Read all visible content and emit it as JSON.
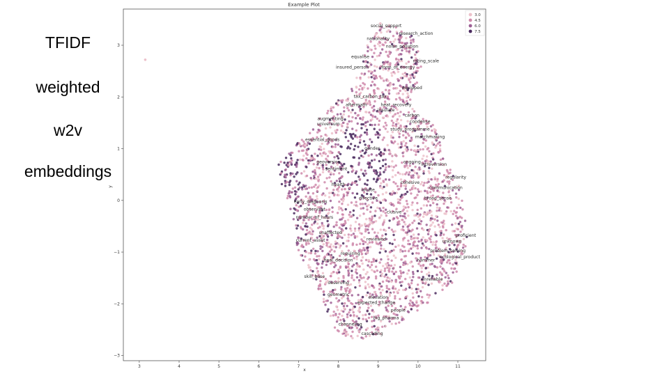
{
  "slide": {
    "side_lines": [
      "TFIDF",
      "weighted",
      "w2v",
      "embeddings"
    ]
  },
  "chart_data": {
    "type": "scatter",
    "title": "Example Plot",
    "xlabel": "x",
    "ylabel": "y",
    "xlim": [
      2.6,
      11.7
    ],
    "ylim": [
      -3.1,
      3.7
    ],
    "xticks": [
      3,
      4,
      5,
      6,
      7,
      8,
      9,
      10,
      11
    ],
    "yticks": [
      -3,
      -2,
      -1,
      0,
      1,
      2,
      3
    ],
    "grid": false,
    "legend": {
      "placement": "top-right",
      "entries": [
        "3.0",
        "4.5",
        "6.0",
        "7.5"
      ]
    },
    "hue_colors": {
      "3.0": "#ecc1ca",
      "4.5": "#cf8aab",
      "6.0": "#9c5f94",
      "7.5": "#4a2a5e"
    },
    "point_color": "#c77aa6",
    "outlier_points": [
      {
        "x": 3.15,
        "y": 2.72
      }
    ],
    "cloud_outline": [
      [
        9.05,
        3.45
      ],
      [
        9.6,
        3.38
      ],
      [
        10.05,
        3.05
      ],
      [
        10.1,
        2.6
      ],
      [
        9.95,
        2.2
      ],
      [
        9.8,
        1.9
      ],
      [
        10.0,
        1.65
      ],
      [
        10.4,
        1.45
      ],
      [
        10.6,
        1.05
      ],
      [
        10.65,
        0.75
      ],
      [
        10.95,
        0.55
      ],
      [
        11.05,
        0.25
      ],
      [
        11.15,
        -0.2
      ],
      [
        11.25,
        -0.7
      ],
      [
        11.1,
        -1.2
      ],
      [
        10.85,
        -1.6
      ],
      [
        10.4,
        -1.9
      ],
      [
        9.9,
        -2.2
      ],
      [
        9.4,
        -2.45
      ],
      [
        8.9,
        -2.65
      ],
      [
        8.4,
        -2.75
      ],
      [
        8.0,
        -2.6
      ],
      [
        7.75,
        -2.2
      ],
      [
        7.5,
        -1.75
      ],
      [
        7.25,
        -1.35
      ],
      [
        7.0,
        -1.05
      ],
      [
        6.9,
        -0.55
      ],
      [
        6.75,
        -0.05
      ],
      [
        6.55,
        0.35
      ],
      [
        6.5,
        0.7
      ],
      [
        6.8,
        0.95
      ],
      [
        7.2,
        1.3
      ],
      [
        7.6,
        1.65
      ],
      [
        8.0,
        1.95
      ],
      [
        8.35,
        2.2
      ],
      [
        8.55,
        2.55
      ],
      [
        8.75,
        3.05
      ]
    ],
    "word_labels": [
      {
        "text": "social_support",
        "x": 9.2,
        "y": 3.35
      },
      {
        "text": "research_action",
        "x": 9.95,
        "y": 3.2
      },
      {
        "text": "nationality",
        "x": 9.0,
        "y": 3.1
      },
      {
        "text": "noise_pollution",
        "x": 9.6,
        "y": 2.95
      },
      {
        "text": "equalise",
        "x": 8.55,
        "y": 2.75
      },
      {
        "text": "rating_scale",
        "x": 10.2,
        "y": 2.67
      },
      {
        "text": "form_of_energy",
        "x": 9.5,
        "y": 2.55
      },
      {
        "text": "insured_person",
        "x": 8.35,
        "y": 2.55
      },
      {
        "text": "equipped",
        "x": 9.85,
        "y": 2.15
      },
      {
        "text": "tax_carbon_tax",
        "x": 8.8,
        "y": 1.98
      },
      {
        "text": "aftermath",
        "x": 8.45,
        "y": 1.82
      },
      {
        "text": "heat_recovery",
        "x": 9.45,
        "y": 1.82
      },
      {
        "text": "insulate",
        "x": 9.2,
        "y": 1.72
      },
      {
        "text": "carbon",
        "x": 9.85,
        "y": 1.62
      },
      {
        "text": "augmenting",
        "x": 7.8,
        "y": 1.55
      },
      {
        "text": "condense",
        "x": 10.05,
        "y": 1.5
      },
      {
        "text": "universum",
        "x": 7.75,
        "y": 1.45
      },
      {
        "text": "study_programme",
        "x": 9.8,
        "y": 1.35
      },
      {
        "text": "matchmaking",
        "x": 10.3,
        "y": 1.2
      },
      {
        "text": "essential_goods",
        "x": 7.6,
        "y": 1.15
      },
      {
        "text": "gender",
        "x": 8.85,
        "y": 0.98
      },
      {
        "text": "ongoing",
        "x": 9.85,
        "y": 0.72
      },
      {
        "text": "introversion",
        "x": 10.4,
        "y": 0.67
      },
      {
        "text": "geoversion",
        "x": 7.75,
        "y": 0.72
      },
      {
        "text": "sentiment",
        "x": 7.95,
        "y": 0.58
      },
      {
        "text": "regularity",
        "x": 10.95,
        "y": 0.42
      },
      {
        "text": "health",
        "x": 8.0,
        "y": 0.28
      },
      {
        "text": "cohesive",
        "x": 9.8,
        "y": 0.32
      },
      {
        "text": "locate",
        "x": 8.75,
        "y": 0.18
      },
      {
        "text": "communication",
        "x": 10.7,
        "y": 0.22
      },
      {
        "text": "broad_sense",
        "x": 10.5,
        "y": 0.02
      },
      {
        "text": "early_diagnosis",
        "x": 7.3,
        "y": -0.05
      },
      {
        "text": "directive",
        "x": 8.75,
        "y": 0.02
      },
      {
        "text": "observant",
        "x": 7.4,
        "y": -0.2
      },
      {
        "text": "number_of_hours",
        "x": 7.4,
        "y": -0.35
      },
      {
        "text": "clusive",
        "x": 9.4,
        "y": -0.25
      },
      {
        "text": "proficient",
        "x": 11.2,
        "y": -0.7
      },
      {
        "text": "unaffected",
        "x": 7.8,
        "y": -0.65
      },
      {
        "text": "current_asset",
        "x": 7.3,
        "y": -0.8
      },
      {
        "text": "reviewed",
        "x": 8.95,
        "y": -0.78
      },
      {
        "text": "unknown",
        "x": 10.85,
        "y": -0.82
      },
      {
        "text": "requiring",
        "x": 8.3,
        "y": -1.05
      },
      {
        "text": "problem_solving",
        "x": 10.75,
        "y": -1.0
      },
      {
        "text": "ecological_product",
        "x": 11.05,
        "y": -1.12
      },
      {
        "text": "final_decision",
        "x": 8.0,
        "y": -1.18
      },
      {
        "text": "hammer",
        "x": 10.2,
        "y": -1.18
      },
      {
        "text": "skill_base",
        "x": 7.4,
        "y": -1.5
      },
      {
        "text": "deserving",
        "x": 8.0,
        "y": -1.62
      },
      {
        "text": "unreliable",
        "x": 10.35,
        "y": -1.55
      },
      {
        "text": "geometric",
        "x": 8.0,
        "y": -1.85
      },
      {
        "text": "elevation",
        "x": 9.0,
        "y": -1.9
      },
      {
        "text": "expected_change",
        "x": 8.95,
        "y": -2.0
      },
      {
        "text": "people",
        "x": 9.5,
        "y": -2.15
      },
      {
        "text": "channeling",
        "x": 8.3,
        "y": -2.42
      },
      {
        "text": "big_pharma",
        "x": 9.2,
        "y": -2.3
      },
      {
        "text": "cascading",
        "x": 8.85,
        "y": -2.6
      }
    ]
  }
}
